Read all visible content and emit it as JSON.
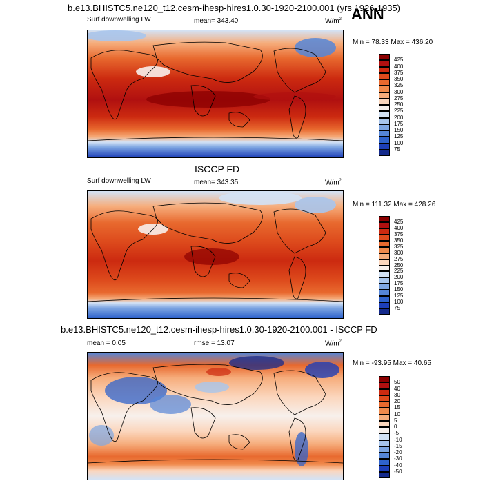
{
  "header": {
    "title": "b.e13.BHISTC5.ne120_t12.cesm-ihesp-hires1.0.30-1920-2100.001 (yrs 1926-1935)",
    "season": "ANN"
  },
  "panels": [
    {
      "id": "model",
      "subtitle": "",
      "var_label": "Surf downwelling LW",
      "stat_text": "mean= 343.40",
      "units": "W/m",
      "units_sup": "2",
      "minmax": "Min =  78.33 Max = 436.20",
      "colorbar_labels": [
        "425",
        "400",
        "375",
        "350",
        "325",
        "300",
        "275",
        "250",
        "225",
        "200",
        "175",
        "150",
        "125",
        "100",
        "75"
      ],
      "colorbar_colors": [
        "#8b0000",
        "#b01010",
        "#cc2a10",
        "#dd4a1c",
        "#e8692e",
        "#f08a4c",
        "#f6ad7c",
        "#fbd6bd",
        "#f7f0ec",
        "#d3e2f5",
        "#a8c5ec",
        "#7ea6e2",
        "#5586d8",
        "#2f63cc",
        "#1d3fb8",
        "#142a8c"
      ]
    },
    {
      "id": "obs",
      "subtitle": "ISCCP FD",
      "var_label": "Surf downwelling LW",
      "stat_text": "mean= 343.35",
      "units": "W/m",
      "units_sup": "2",
      "minmax": "Min = 111.32 Max = 428.26",
      "colorbar_labels": [
        "425",
        "400",
        "375",
        "350",
        "325",
        "300",
        "275",
        "250",
        "225",
        "200",
        "175",
        "150",
        "125",
        "100",
        "75"
      ],
      "colorbar_colors": [
        "#8b0000",
        "#b01010",
        "#cc2a10",
        "#dd4a1c",
        "#e8692e",
        "#f08a4c",
        "#f6ad7c",
        "#fbd6bd",
        "#f7f0ec",
        "#d3e2f5",
        "#a8c5ec",
        "#7ea6e2",
        "#5586d8",
        "#2f63cc",
        "#1d3fb8",
        "#142a8c"
      ]
    },
    {
      "id": "diff",
      "subtitle": "b.e13.BHISTC5.ne120_t12.cesm-ihesp-hires1.0.30-1920-2100.001 - ISCCP FD",
      "var_label": "mean =   0.05",
      "stat_text": "rmse =  13.07",
      "units": "W/m",
      "units_sup": "2",
      "minmax": "Min = -93.95 Max =  40.65",
      "colorbar_labels": [
        "50",
        "40",
        "30",
        "20",
        "15",
        "10",
        "5",
        "0",
        "-5",
        "-10",
        "-15",
        "-20",
        "-30",
        "-40",
        "-50"
      ],
      "colorbar_colors": [
        "#8b0000",
        "#b01010",
        "#cc2a10",
        "#dd4a1c",
        "#e8692e",
        "#f08a4c",
        "#f6ad7c",
        "#fbd6bd",
        "#f7f0ec",
        "#d3e2f5",
        "#a8c5ec",
        "#7ea6e2",
        "#5586d8",
        "#2f63cc",
        "#1d3fb8",
        "#142a8c"
      ]
    }
  ]
}
